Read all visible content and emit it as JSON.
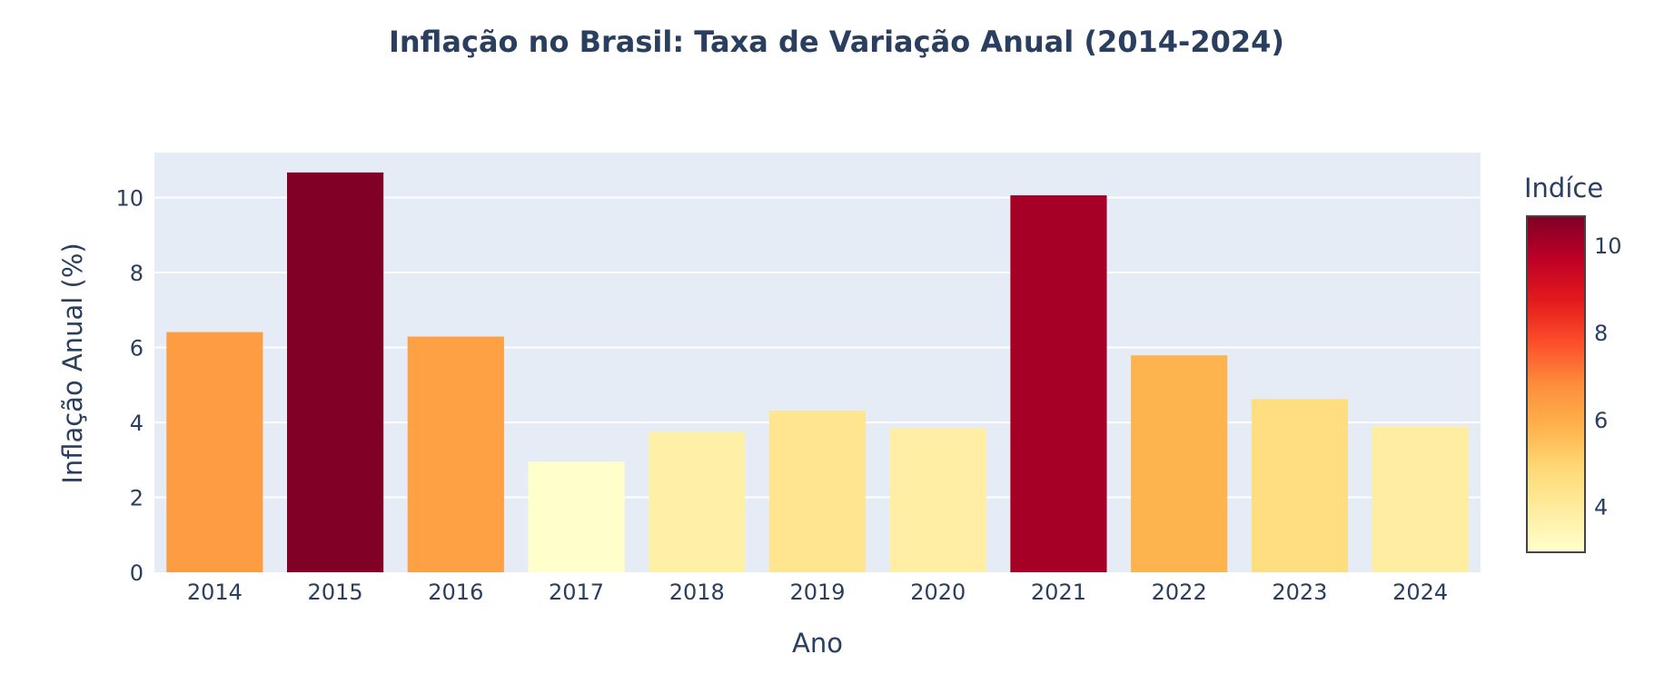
{
  "chart_data": {
    "type": "bar",
    "title": "Inflação no Brasil: Taxa de Variação Anual (2014-2024)",
    "xlabel": "Ano",
    "ylabel": "Inflação Anual (%)",
    "categories": [
      "2014",
      "2015",
      "2016",
      "2017",
      "2018",
      "2019",
      "2020",
      "2021",
      "2022",
      "2023",
      "2024"
    ],
    "values": [
      6.41,
      10.67,
      6.29,
      2.95,
      3.75,
      4.31,
      3.85,
      10.06,
      5.79,
      4.62,
      3.9
    ],
    "ylim": [
      0,
      11.2
    ],
    "yticks": [
      0,
      2,
      4,
      6,
      8,
      10
    ],
    "grid": true,
    "colorscale": {
      "name": "YlOrRd",
      "title": "Indíce",
      "range": [
        2.95,
        10.67
      ],
      "ticks": [
        4,
        6,
        8,
        10
      ],
      "stops": [
        "#ffffcc",
        "#ffeda0",
        "#fed976",
        "#feb24c",
        "#fd8d3c",
        "#fc4e2a",
        "#e31a1c",
        "#bd0026",
        "#800026"
      ]
    }
  },
  "colors": {
    "plot_background": "#e5ecf6",
    "gridline": "#ffffff",
    "text": "#2a3f5f"
  }
}
